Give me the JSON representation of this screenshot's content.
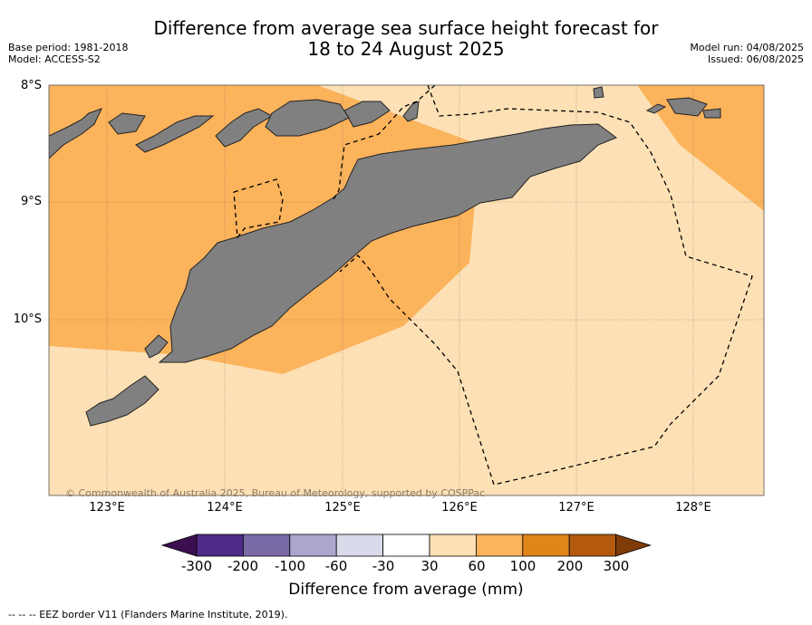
{
  "title_line1": "Difference from average sea surface height forecast for",
  "title_line2": "18 to 24 August 2025",
  "base_period": "Base period: 1981-2018",
  "model": "Model: ACCESS-S2",
  "model_run": "Model run: 04/08/2025",
  "issued": "Issued: 06/08/2025",
  "lat_labels": [
    "8°S",
    "9°S",
    "10°S"
  ],
  "lon_labels": [
    "123°E",
    "124°E",
    "125°E",
    "126°E",
    "127°E",
    "128°E"
  ],
  "copyright": "© Commonwealth of Australia 2025, Bureau of Meteorology, supported by COSPPac",
  "colorbar": {
    "ticks": [
      "-300",
      "-200",
      "-100",
      "-60",
      "-30",
      "30",
      "60",
      "100",
      "200",
      "300"
    ],
    "colors": [
      "#3b0f4f",
      "#4f2a87",
      "#7b6aa8",
      "#aca6cf",
      "#d9daea",
      "#ffffff",
      "#fde0b5",
      "#fbb35c",
      "#e08518",
      "#b35a0c",
      "#7f3b08"
    ],
    "label": "Difference from average (mm)"
  },
  "legend_footnote": "-- -- -- EEZ border V11 (Flanders Marine Institute, 2019).",
  "map_colors": {
    "light_band": "#fde0b5",
    "mid_band": "#fbb35c",
    "land": "#808080"
  }
}
